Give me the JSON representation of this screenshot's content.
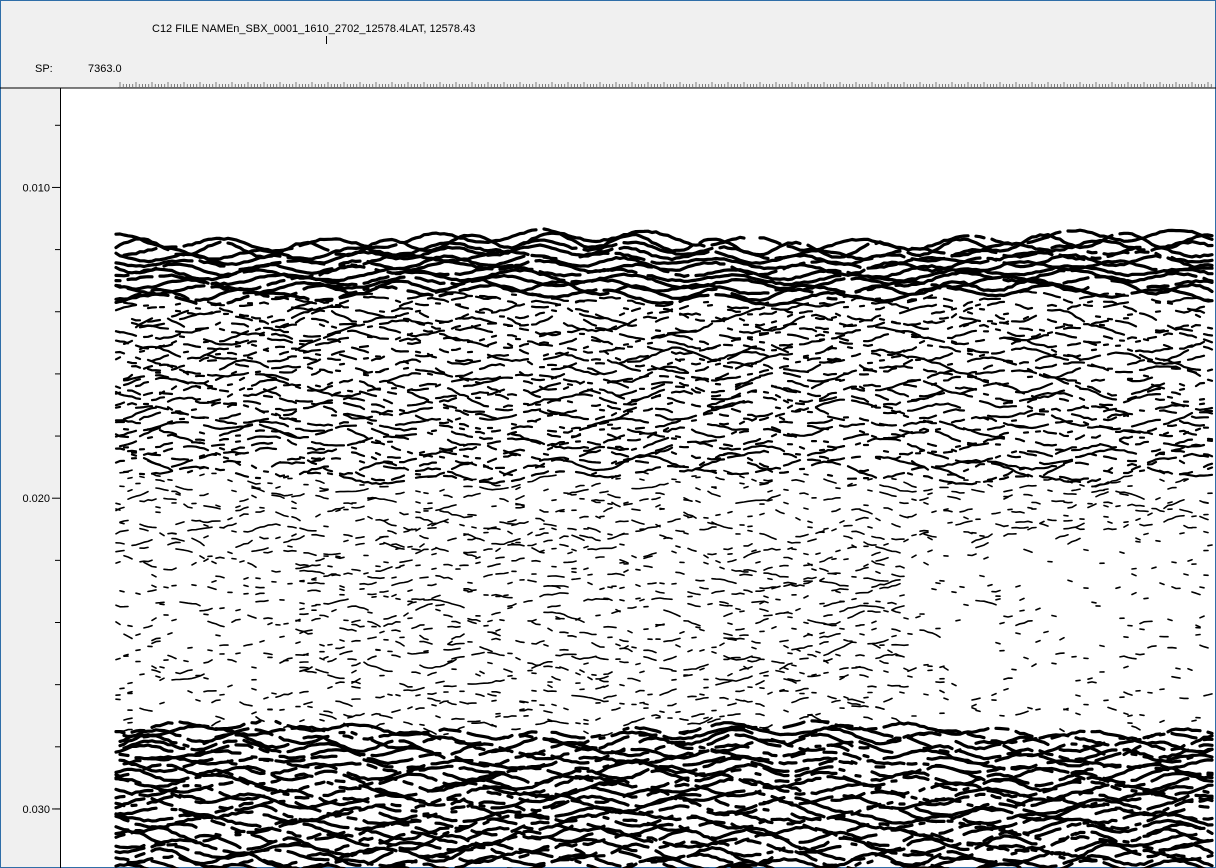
{
  "header": {
    "file_name": "C12 FILE NAMEn_SBX_0001_1610_2702_12578.4LAT, 12578.43"
  },
  "ruler": {
    "label": "SP:",
    "start": "7363.0"
  },
  "axis": {
    "ylim": [
      0.0068,
      0.0319
    ],
    "yticks": [
      {
        "value": 0.01,
        "label": "0.010"
      },
      {
        "value": 0.02,
        "label": "0.020"
      },
      {
        "value": 0.03,
        "label": "0.030"
      }
    ],
    "minor_yticks": [
      0.008,
      0.012,
      0.014,
      0.016,
      0.018,
      0.022,
      0.024,
      0.026,
      0.028,
      0.03
    ]
  }
}
